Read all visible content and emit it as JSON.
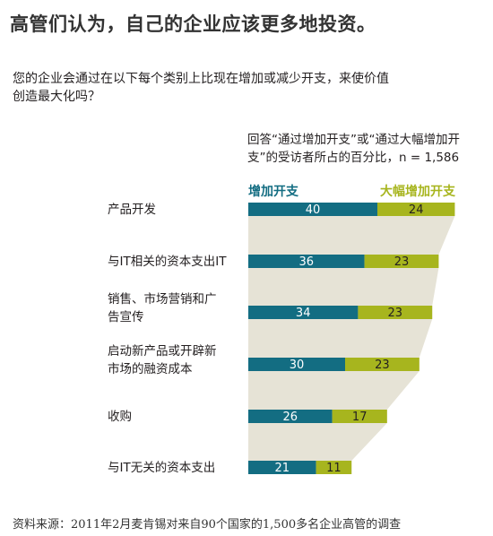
{
  "title": "高管们认为，自己的企业应该更多地投资。",
  "question": "您的企业会通过在以下每个类别上比现在增加或减少开支，来使价值创造最大化吗？",
  "note": "回答“通过增加开支”或“通过大幅增加开支”的受访者所占的百分比，n = 1,586",
  "source": "资料来源：2011年2月麦肯锡对来自90个国家的1,500多名企业高管的调查",
  "colors": {
    "increase": "#136d82",
    "significant": "#a7b51e",
    "band": "#e6e3d6",
    "value_light": "#ffffff",
    "value_dark": "#231f20"
  },
  "chart_data": {
    "type": "bar",
    "stacked": true,
    "orientation": "horizontal",
    "categories": [
      [
        "产品开发"
      ],
      [
        "与IT相关的资本支出IT"
      ],
      [
        "销售、市场营销和广",
        "告宣传"
      ],
      [
        "启动新产品或开辟新",
        "市场的融资成本"
      ],
      [
        "收购"
      ],
      [
        "与IT无关的资本支出"
      ]
    ],
    "series": [
      {
        "name": "增加开支",
        "values": [
          40,
          36,
          34,
          30,
          26,
          21
        ]
      },
      {
        "name": "大幅增加开支",
        "values": [
          24,
          23,
          23,
          23,
          17,
          11
        ]
      }
    ],
    "legend_placement": "top",
    "grid": false
  }
}
